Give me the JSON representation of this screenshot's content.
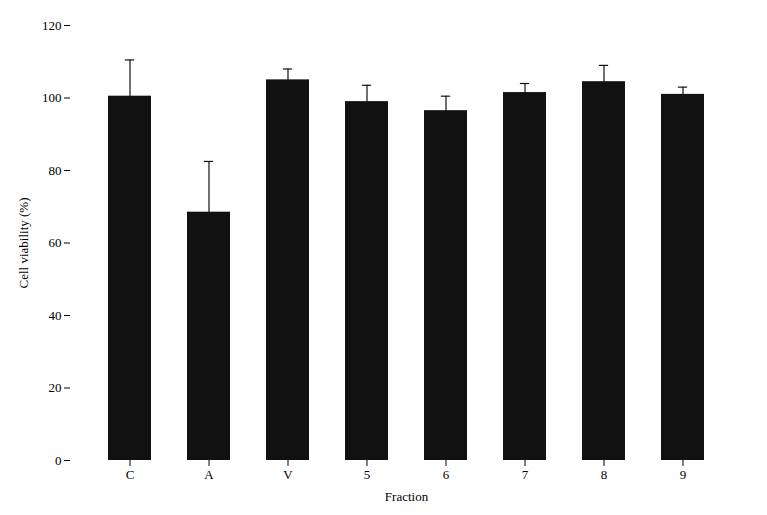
{
  "chart_data": {
    "type": "bar",
    "categories": [
      "C",
      "A",
      "V",
      "5",
      "6",
      "7",
      "8",
      "9"
    ],
    "values": [
      100.5,
      68.5,
      105.0,
      99.0,
      96.5,
      101.5,
      104.5,
      101.0
    ],
    "errors": [
      10.0,
      14.0,
      3.0,
      4.5,
      4.0,
      2.5,
      4.5,
      2.0
    ],
    "color": "#111111",
    "xlabel": "Fraction",
    "ylabel": "Cell viability (%)",
    "ylim": [
      0,
      120
    ],
    "yticks": [
      0,
      20,
      40,
      60,
      80,
      100,
      120
    ],
    "grid": false
  }
}
